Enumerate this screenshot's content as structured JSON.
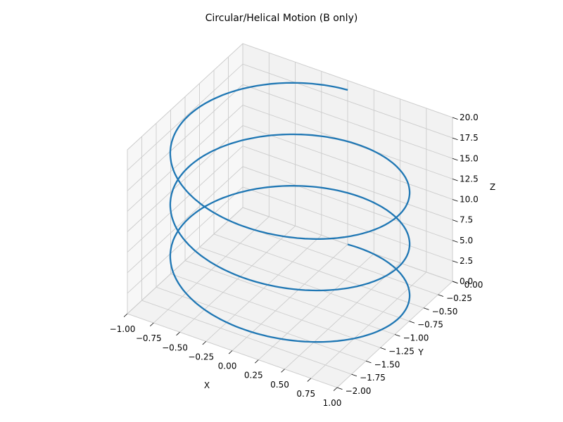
{
  "chart_data": {
    "type": "line-3d",
    "title": "Circular/Helical Motion (B only)",
    "xlabel": "X",
    "ylabel": "Y",
    "zlabel": "Z",
    "xlim": [
      -1.0,
      1.0
    ],
    "ylim": [
      -2.0,
      0.0
    ],
    "zlim": [
      0.0,
      20.0
    ],
    "x_ticks": [
      "−1.00",
      "−0.75",
      "−0.50",
      "−0.25",
      "0.00",
      "0.25",
      "0.50",
      "0.75",
      "1.00"
    ],
    "y_ticks": [
      "−2.00",
      "−1.75",
      "−1.50",
      "−1.25",
      "−1.00",
      "−0.75",
      "−0.50",
      "−0.25",
      "0.00"
    ],
    "z_ticks": [
      "0.0",
      "2.5",
      "5.0",
      "7.5",
      "10.0",
      "12.5",
      "15.0",
      "17.5",
      "20.0"
    ],
    "grid": true,
    "series": [
      {
        "color": "#1f77b4",
        "parametric": "x = sin(t), y = cos(t) - 1, z = 1.0 * t",
        "t_range": [
          0,
          18.85
        ]
      }
    ]
  }
}
